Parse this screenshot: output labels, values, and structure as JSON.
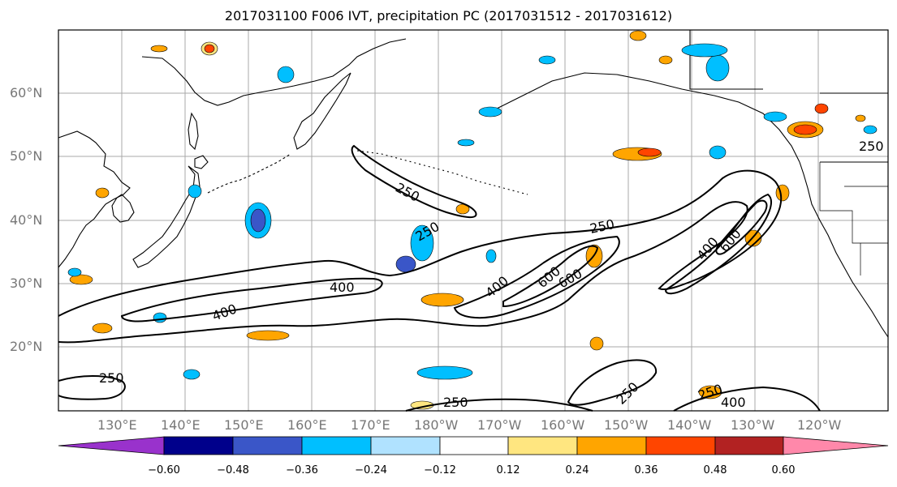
{
  "title": "2017031100 F006 IVT, precipitation PC (2017031512 - 2017031612)",
  "map": {
    "lat_labels": [
      "60°N",
      "50°N",
      "40°N",
      "30°N",
      "20°N"
    ],
    "lon_labels": [
      "130°E",
      "140°E",
      "150°E",
      "160°E",
      "170°E",
      "180°W",
      "170°W",
      "160°W",
      "150°W",
      "140°W",
      "130°W",
      "120°W"
    ],
    "contour_labels": [
      "250",
      "250",
      "250",
      "250",
      "250",
      "250",
      "250",
      "250",
      "400",
      "400",
      "400",
      "400",
      "400",
      "600",
      "600",
      "600"
    ]
  },
  "colorbar": {
    "ticks": [
      "−0.60",
      "−0.48",
      "−0.36",
      "−0.24",
      "−0.12",
      "0.12",
      "0.24",
      "0.36",
      "0.48",
      "0.60"
    ],
    "colors": [
      "#9932CC",
      "#00008B",
      "#3A56C8",
      "#00BFFF",
      "#B0E2FF",
      "#FFFFFF",
      "#FFE680",
      "#FFA500",
      "#FF4500",
      "#B22222",
      "#FF88AA"
    ]
  }
}
